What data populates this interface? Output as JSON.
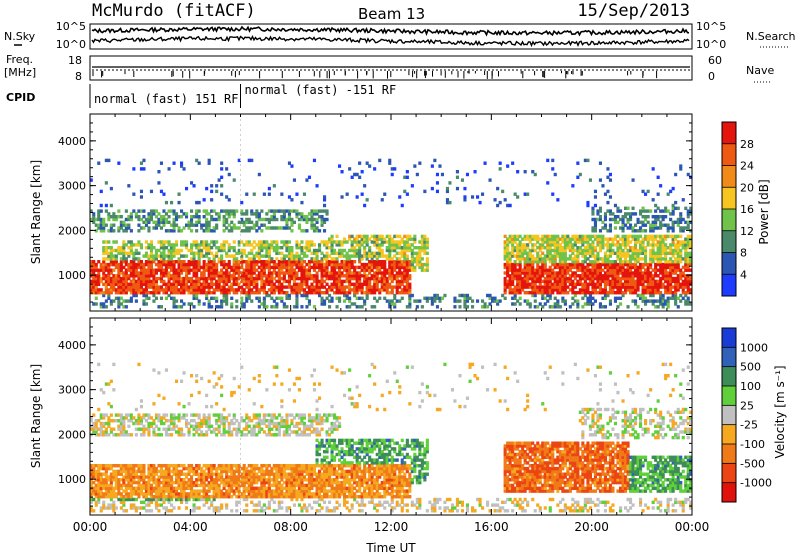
{
  "header": {
    "station": "McMurdo (fitACF)",
    "beam": "Beam 13",
    "date": "15/Sep/2013"
  },
  "strip_labels": {
    "nsky": "N.Sky",
    "freq_line1": "Freq.",
    "freq_line2": "[MHz]",
    "cpid": "CPID",
    "nsearch": "N.Search",
    "nave": "Nave",
    "left_ticks_top": [
      "10^5",
      "10^0"
    ],
    "right_ticks_top": [
      "10^5",
      "10^0"
    ],
    "left_ticks_freq": [
      "18",
      "8"
    ],
    "right_ticks_nave": [
      "60",
      "0"
    ]
  },
  "cpid_segments": [
    {
      "label": "normal (fast) 151 RF",
      "start_hour": 0,
      "end_hour": 6
    },
    {
      "label": "normal (fast) -151 RF",
      "start_hour": 6,
      "end_hour": 24
    }
  ],
  "chart_data": [
    {
      "type": "heatmap",
      "name": "power-panel",
      "ylabel": "Slant Range [km]",
      "xlim": [
        0,
        24
      ],
      "ylim": [
        200,
        4600
      ],
      "yticks": [
        "1000",
        "2000",
        "3000",
        "4000"
      ],
      "colorbar": {
        "label": "Power [dB]",
        "ticks": [
          "4",
          "8",
          "12",
          "16",
          "20",
          "24",
          "28"
        ],
        "colors": [
          "#1e3cff",
          "#2c56b4",
          "#4a8a6a",
          "#6fc34a",
          "#f6c521",
          "#f08a18",
          "#ee5a12",
          "#e4150d"
        ]
      },
      "bands": [
        {
          "t0": 0.0,
          "t1": 12.8,
          "r0": 600,
          "r1": 1300,
          "level": 0.92,
          "fill": 0.85
        },
        {
          "t0": 0.5,
          "t1": 12.5,
          "r0": 1300,
          "r1": 1800,
          "level": 0.45,
          "fill": 0.6
        },
        {
          "t0": 9.5,
          "t1": 13.5,
          "r0": 1100,
          "r1": 1900,
          "level": 0.5,
          "fill": 0.7
        },
        {
          "t0": 0.0,
          "t1": 9.5,
          "r0": 1950,
          "r1": 2450,
          "level": 0.3,
          "fill": 0.55
        },
        {
          "t0": 16.5,
          "t1": 24.0,
          "r0": 600,
          "r1": 1250,
          "level": 0.95,
          "fill": 0.85
        },
        {
          "t0": 16.5,
          "t1": 24.0,
          "r0": 1250,
          "r1": 1900,
          "level": 0.5,
          "fill": 0.75
        },
        {
          "t0": 20.0,
          "t1": 24.0,
          "r0": 1950,
          "r1": 2500,
          "level": 0.25,
          "fill": 0.5
        },
        {
          "t0": 0.0,
          "t1": 24.0,
          "r0": 250,
          "r1": 600,
          "level": 0.25,
          "fill": 0.35
        },
        {
          "t0": 0.0,
          "t1": 24.0,
          "r0": 2500,
          "r1": 3600,
          "level": 0.12,
          "fill": 0.06
        }
      ]
    },
    {
      "type": "heatmap",
      "name": "velocity-panel",
      "ylabel": "Slant Range [km]",
      "xlabel": "Time UT",
      "xlim": [
        0,
        24
      ],
      "ylim": [
        200,
        4600
      ],
      "xticks": [
        "00:00",
        "04:00",
        "08:00",
        "12:00",
        "16:00",
        "20:00",
        "00:00"
      ],
      "yticks": [
        "1000",
        "2000",
        "3000",
        "4000"
      ],
      "colorbar": {
        "label": "Velocity [m s⁻¹]",
        "ticks": [
          "1000",
          "500",
          "100",
          "25",
          "-25",
          "-100",
          "-500",
          "-1000"
        ],
        "colors": [
          "#1a3cd6",
          "#2f62b8",
          "#3d8d58",
          "#5fd03a",
          "#c0c0c0",
          "#f6a821",
          "#f07a18",
          "#ec4412",
          "#e0120c"
        ]
      },
      "bands": [
        {
          "t0": 0.0,
          "t1": 12.8,
          "r0": 550,
          "r1": 1300,
          "level": 0.7,
          "fill": 0.85
        },
        {
          "t0": 0.0,
          "t1": 5.0,
          "r0": 500,
          "r1": 1300,
          "level": 0.35,
          "fill": 0.6
        },
        {
          "t0": 9.0,
          "t1": 13.5,
          "r0": 900,
          "r1": 1900,
          "level": 0.3,
          "fill": 0.6
        },
        {
          "t0": 0.0,
          "t1": 10.0,
          "r0": 1950,
          "r1": 2450,
          "level": 0.5,
          "fill": 0.6
        },
        {
          "t0": 16.5,
          "t1": 21.5,
          "r0": 700,
          "r1": 1850,
          "level": 0.8,
          "fill": 0.85
        },
        {
          "t0": 21.0,
          "t1": 24.0,
          "r0": 700,
          "r1": 1500,
          "level": 0.3,
          "fill": 0.75
        },
        {
          "t0": 19.5,
          "t1": 24.0,
          "r0": 1900,
          "r1": 2600,
          "level": 0.5,
          "fill": 0.45
        },
        {
          "t0": 0.0,
          "t1": 24.0,
          "r0": 250,
          "r1": 600,
          "level": 0.55,
          "fill": 0.35
        },
        {
          "t0": 0.0,
          "t1": 24.0,
          "r0": 2500,
          "r1": 3600,
          "level": 0.55,
          "fill": 0.05
        }
      ]
    }
  ]
}
